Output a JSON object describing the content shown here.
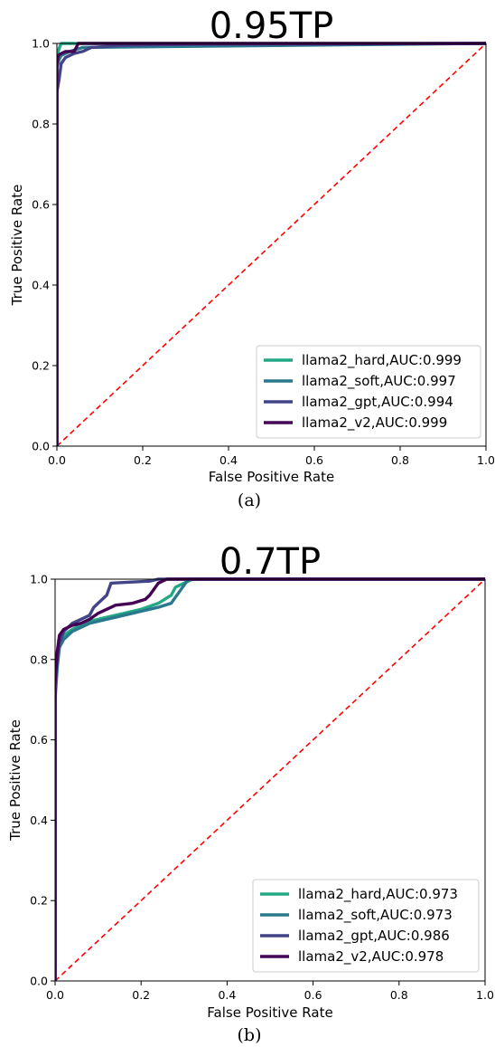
{
  "chart_data": [
    {
      "type": "line",
      "title": "0.95TP",
      "xlabel": "False Positive Rate",
      "ylabel": "True Positive Rate",
      "caption": "(a)",
      "xlim": [
        0,
        1
      ],
      "ylim": [
        0,
        1
      ],
      "xticks": [
        "0.0",
        "0.2",
        "0.4",
        "0.6",
        "0.8",
        "1.0"
      ],
      "yticks": [
        "0.0",
        "0.2",
        "0.4",
        "0.6",
        "0.8",
        "1.0"
      ],
      "legend_position": "bottom-right",
      "diagonal": {
        "x": [
          0,
          1
        ],
        "y": [
          0,
          1
        ],
        "color": "#ff0000",
        "style": "dashed"
      },
      "series": [
        {
          "name": "llama2_hard,AUC:0.999",
          "color": "#22a884",
          "x": [
            0,
            0,
            0.003,
            0.006,
            0.01,
            0.02,
            1.0
          ],
          "y": [
            0,
            0.96,
            0.98,
            0.99,
            1.0,
            1.0,
            1.0
          ]
        },
        {
          "name": "llama2_soft,AUC:0.997",
          "color": "#2a788e",
          "x": [
            0,
            0,
            0.005,
            0.01,
            0.02,
            0.03,
            0.06,
            1.0
          ],
          "y": [
            0,
            0.94,
            0.96,
            0.97,
            0.975,
            0.98,
            0.99,
            1.0
          ]
        },
        {
          "name": "llama2_gpt,AUC:0.994",
          "color": "#414487",
          "x": [
            0,
            0,
            0.005,
            0.01,
            0.02,
            0.04,
            0.06,
            0.08,
            0.15,
            0.3,
            1.0
          ],
          "y": [
            0,
            0.88,
            0.91,
            0.95,
            0.965,
            0.975,
            0.98,
            0.99,
            0.995,
            0.998,
            1.0
          ]
        },
        {
          "name": "llama2_v2,AUC:0.999",
          "color": "#440154",
          "x": [
            0,
            0,
            0.003,
            0.01,
            0.02,
            0.04,
            0.05,
            0.06,
            1.0
          ],
          "y": [
            0,
            0.95,
            0.97,
            0.975,
            0.98,
            0.98,
            1.0,
            1.0,
            1.0
          ]
        }
      ]
    },
    {
      "type": "line",
      "title": "0.7TP",
      "xlabel": "False Positive Rate",
      "ylabel": "True Positive Rate",
      "caption": "(b)",
      "xlim": [
        0,
        1
      ],
      "ylim": [
        0,
        1
      ],
      "xticks": [
        "0.0",
        "0.2",
        "0.4",
        "0.6",
        "0.8",
        "1.0"
      ],
      "yticks": [
        "0.0",
        "0.2",
        "0.4",
        "0.6",
        "0.8",
        "1.0"
      ],
      "legend_position": "bottom-right",
      "diagonal": {
        "x": [
          0,
          1
        ],
        "y": [
          0,
          1
        ],
        "color": "#ff0000",
        "style": "dashed"
      },
      "series": [
        {
          "name": "llama2_hard,AUC:0.973",
          "color": "#22a884",
          "x": [
            0,
            0,
            0.005,
            0.01,
            0.02,
            0.04,
            0.06,
            0.08,
            0.12,
            0.16,
            0.2,
            0.24,
            0.27,
            0.28,
            0.3,
            0.32,
            0.4,
            1.0
          ],
          "y": [
            0,
            0.72,
            0.8,
            0.84,
            0.86,
            0.875,
            0.885,
            0.895,
            0.905,
            0.915,
            0.925,
            0.94,
            0.96,
            0.98,
            0.99,
            1.0,
            1.0,
            1.0
          ]
        },
        {
          "name": "llama2_soft,AUC:0.973",
          "color": "#2a788e",
          "x": [
            0,
            0,
            0.005,
            0.01,
            0.02,
            0.04,
            0.06,
            0.08,
            0.12,
            0.16,
            0.2,
            0.24,
            0.27,
            0.29,
            0.31,
            0.4,
            1.0
          ],
          "y": [
            0,
            0.7,
            0.78,
            0.83,
            0.85,
            0.87,
            0.88,
            0.89,
            0.9,
            0.91,
            0.92,
            0.93,
            0.94,
            0.97,
            1.0,
            1.0,
            1.0
          ]
        },
        {
          "name": "llama2_gpt,AUC:0.986",
          "color": "#414487",
          "x": [
            0,
            0,
            0.005,
            0.01,
            0.02,
            0.04,
            0.06,
            0.08,
            0.09,
            0.1,
            0.12,
            0.13,
            0.22,
            0.24,
            0.3,
            1.0
          ],
          "y": [
            0,
            0.75,
            0.8,
            0.84,
            0.87,
            0.89,
            0.9,
            0.91,
            0.93,
            0.94,
            0.96,
            0.99,
            0.995,
            1.0,
            1.0,
            1.0
          ]
        },
        {
          "name": "llama2_v2,AUC:0.978",
          "color": "#440154",
          "x": [
            0,
            0,
            0.005,
            0.01,
            0.02,
            0.04,
            0.06,
            0.08,
            0.1,
            0.12,
            0.14,
            0.18,
            0.21,
            0.22,
            0.24,
            0.26,
            1.0
          ],
          "y": [
            0,
            0.74,
            0.82,
            0.86,
            0.875,
            0.885,
            0.89,
            0.9,
            0.915,
            0.925,
            0.935,
            0.94,
            0.95,
            0.96,
            0.99,
            1.0,
            1.0
          ]
        }
      ]
    }
  ]
}
